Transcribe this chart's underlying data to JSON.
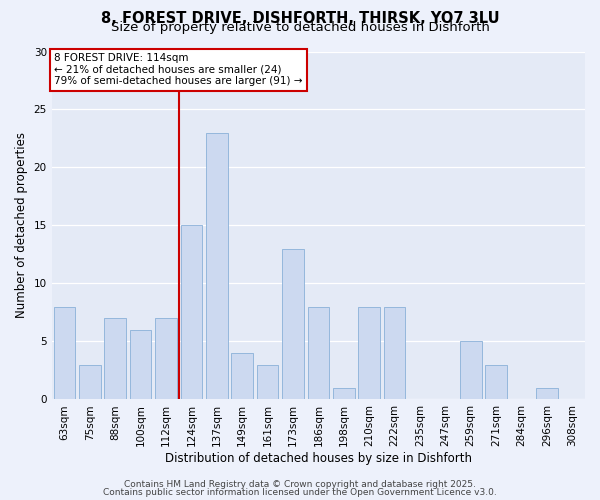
{
  "title": "8, FOREST DRIVE, DISHFORTH, THIRSK, YO7 3LU",
  "subtitle": "Size of property relative to detached houses in Dishforth",
  "xlabel": "Distribution of detached houses by size in Dishforth",
  "ylabel": "Number of detached properties",
  "categories": [
    "63sqm",
    "75sqm",
    "88sqm",
    "100sqm",
    "112sqm",
    "124sqm",
    "137sqm",
    "149sqm",
    "161sqm",
    "173sqm",
    "186sqm",
    "198sqm",
    "210sqm",
    "222sqm",
    "235sqm",
    "247sqm",
    "259sqm",
    "271sqm",
    "284sqm",
    "296sqm",
    "308sqm"
  ],
  "values": [
    8,
    3,
    7,
    6,
    7,
    15,
    23,
    4,
    3,
    13,
    8,
    1,
    8,
    8,
    0,
    0,
    5,
    3,
    0,
    1,
    0
  ],
  "bar_color": "#ccd9f0",
  "bar_edgecolor": "#8ab0d8",
  "highlight_bar_index": 4,
  "highlight_line_color": "#cc0000",
  "ylim": [
    0,
    30
  ],
  "yticks": [
    0,
    5,
    10,
    15,
    20,
    25,
    30
  ],
  "annotation_line0": "8 FOREST DRIVE: 114sqm",
  "annotation_line1": "← 21% of detached houses are smaller (24)",
  "annotation_line2": "79% of semi-detached houses are larger (91) →",
  "footer_line1": "Contains HM Land Registry data © Crown copyright and database right 2025.",
  "footer_line2": "Contains public sector information licensed under the Open Government Licence v3.0.",
  "fig_bg_color": "#edf1fb",
  "plot_bg_color": "#e4eaf6",
  "grid_color": "#ffffff",
  "title_fontsize": 10.5,
  "subtitle_fontsize": 9.5,
  "axis_label_fontsize": 8.5,
  "tick_fontsize": 7.5,
  "annotation_fontsize": 7.5,
  "footer_fontsize": 6.5
}
